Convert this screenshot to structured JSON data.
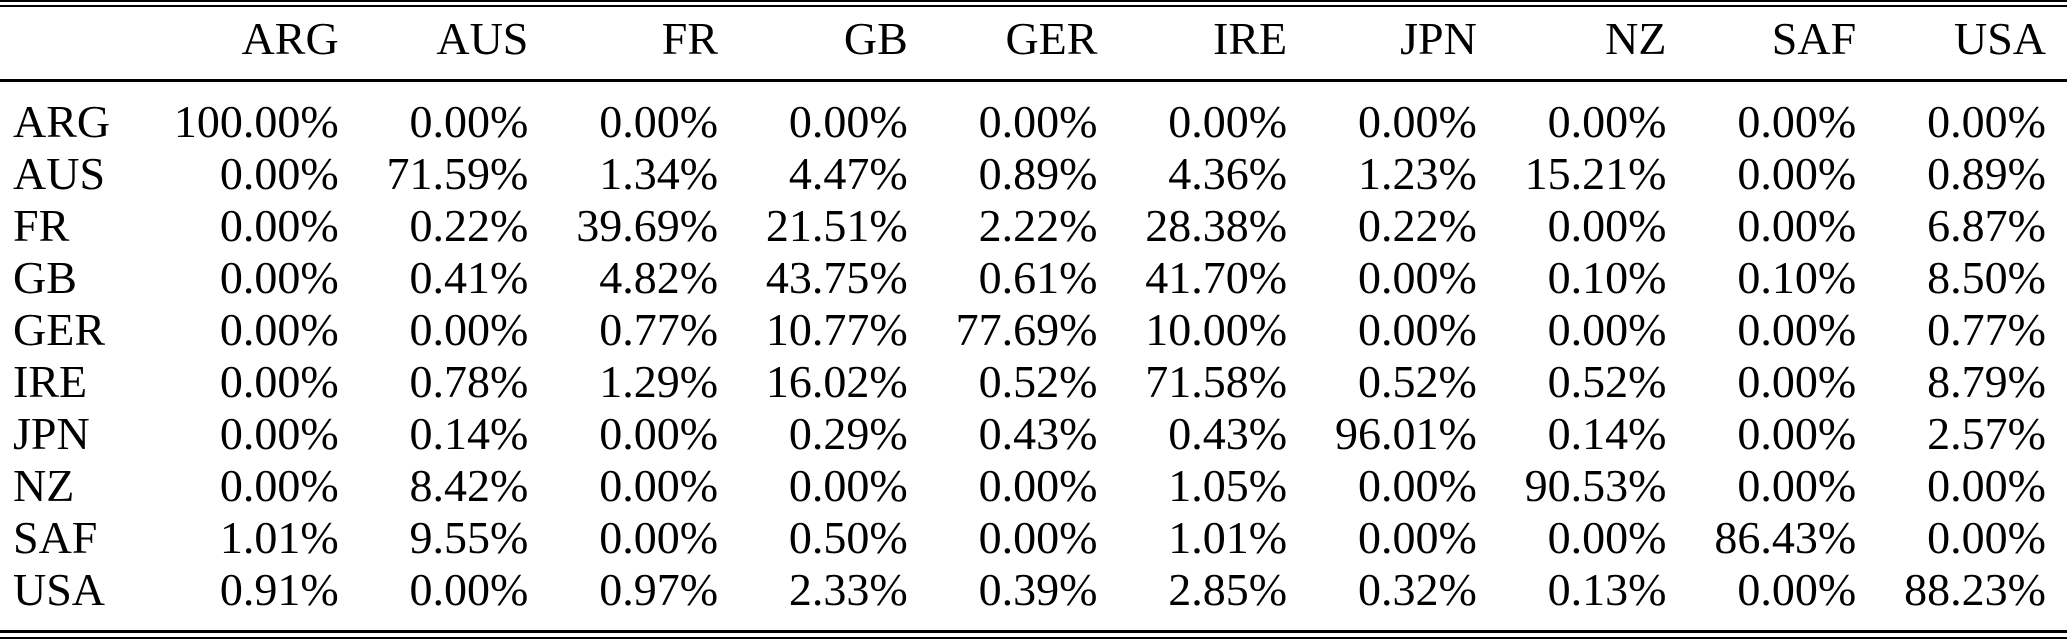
{
  "table": {
    "corner_label": "",
    "columns": [
      "ARG",
      "AUS",
      "FR",
      "GB",
      "GER",
      "IRE",
      "JPN",
      "NZ",
      "SAF",
      "USA"
    ],
    "rows": [
      {
        "label": "ARG",
        "values": [
          "100.00%",
          "0.00%",
          "0.00%",
          "0.00%",
          "0.00%",
          "0.00%",
          "0.00%",
          "0.00%",
          "0.00%",
          "0.00%"
        ]
      },
      {
        "label": "AUS",
        "values": [
          "0.00%",
          "71.59%",
          "1.34%",
          "4.47%",
          "0.89%",
          "4.36%",
          "1.23%",
          "15.21%",
          "0.00%",
          "0.89%"
        ]
      },
      {
        "label": "FR",
        "values": [
          "0.00%",
          "0.22%",
          "39.69%",
          "21.51%",
          "2.22%",
          "28.38%",
          "0.22%",
          "0.00%",
          "0.00%",
          "6.87%"
        ]
      },
      {
        "label": "GB",
        "values": [
          "0.00%",
          "0.41%",
          "4.82%",
          "43.75%",
          "0.61%",
          "41.70%",
          "0.00%",
          "0.10%",
          "0.10%",
          "8.50%"
        ]
      },
      {
        "label": "GER",
        "values": [
          "0.00%",
          "0.00%",
          "0.77%",
          "10.77%",
          "77.69%",
          "10.00%",
          "0.00%",
          "0.00%",
          "0.00%",
          "0.77%"
        ]
      },
      {
        "label": "IRE",
        "values": [
          "0.00%",
          "0.78%",
          "1.29%",
          "16.02%",
          "0.52%",
          "71.58%",
          "0.52%",
          "0.52%",
          "0.00%",
          "8.79%"
        ]
      },
      {
        "label": "JPN",
        "values": [
          "0.00%",
          "0.14%",
          "0.00%",
          "0.29%",
          "0.43%",
          "0.43%",
          "96.01%",
          "0.14%",
          "0.00%",
          "2.57%"
        ]
      },
      {
        "label": "NZ",
        "values": [
          "0.00%",
          "8.42%",
          "0.00%",
          "0.00%",
          "0.00%",
          "1.05%",
          "0.00%",
          "90.53%",
          "0.00%",
          "0.00%"
        ]
      },
      {
        "label": "SAF",
        "values": [
          "1.01%",
          "9.55%",
          "0.00%",
          "0.50%",
          "0.00%",
          "1.01%",
          "0.00%",
          "0.00%",
          "86.43%",
          "0.00%"
        ]
      },
      {
        "label": "USA",
        "values": [
          "0.91%",
          "0.00%",
          "0.97%",
          "2.33%",
          "0.39%",
          "2.85%",
          "0.32%",
          "0.13%",
          "0.00%",
          "88.23%"
        ]
      }
    ]
  },
  "colors": {
    "text": "#000000",
    "background": "#ffffff",
    "rule": "#000000"
  }
}
